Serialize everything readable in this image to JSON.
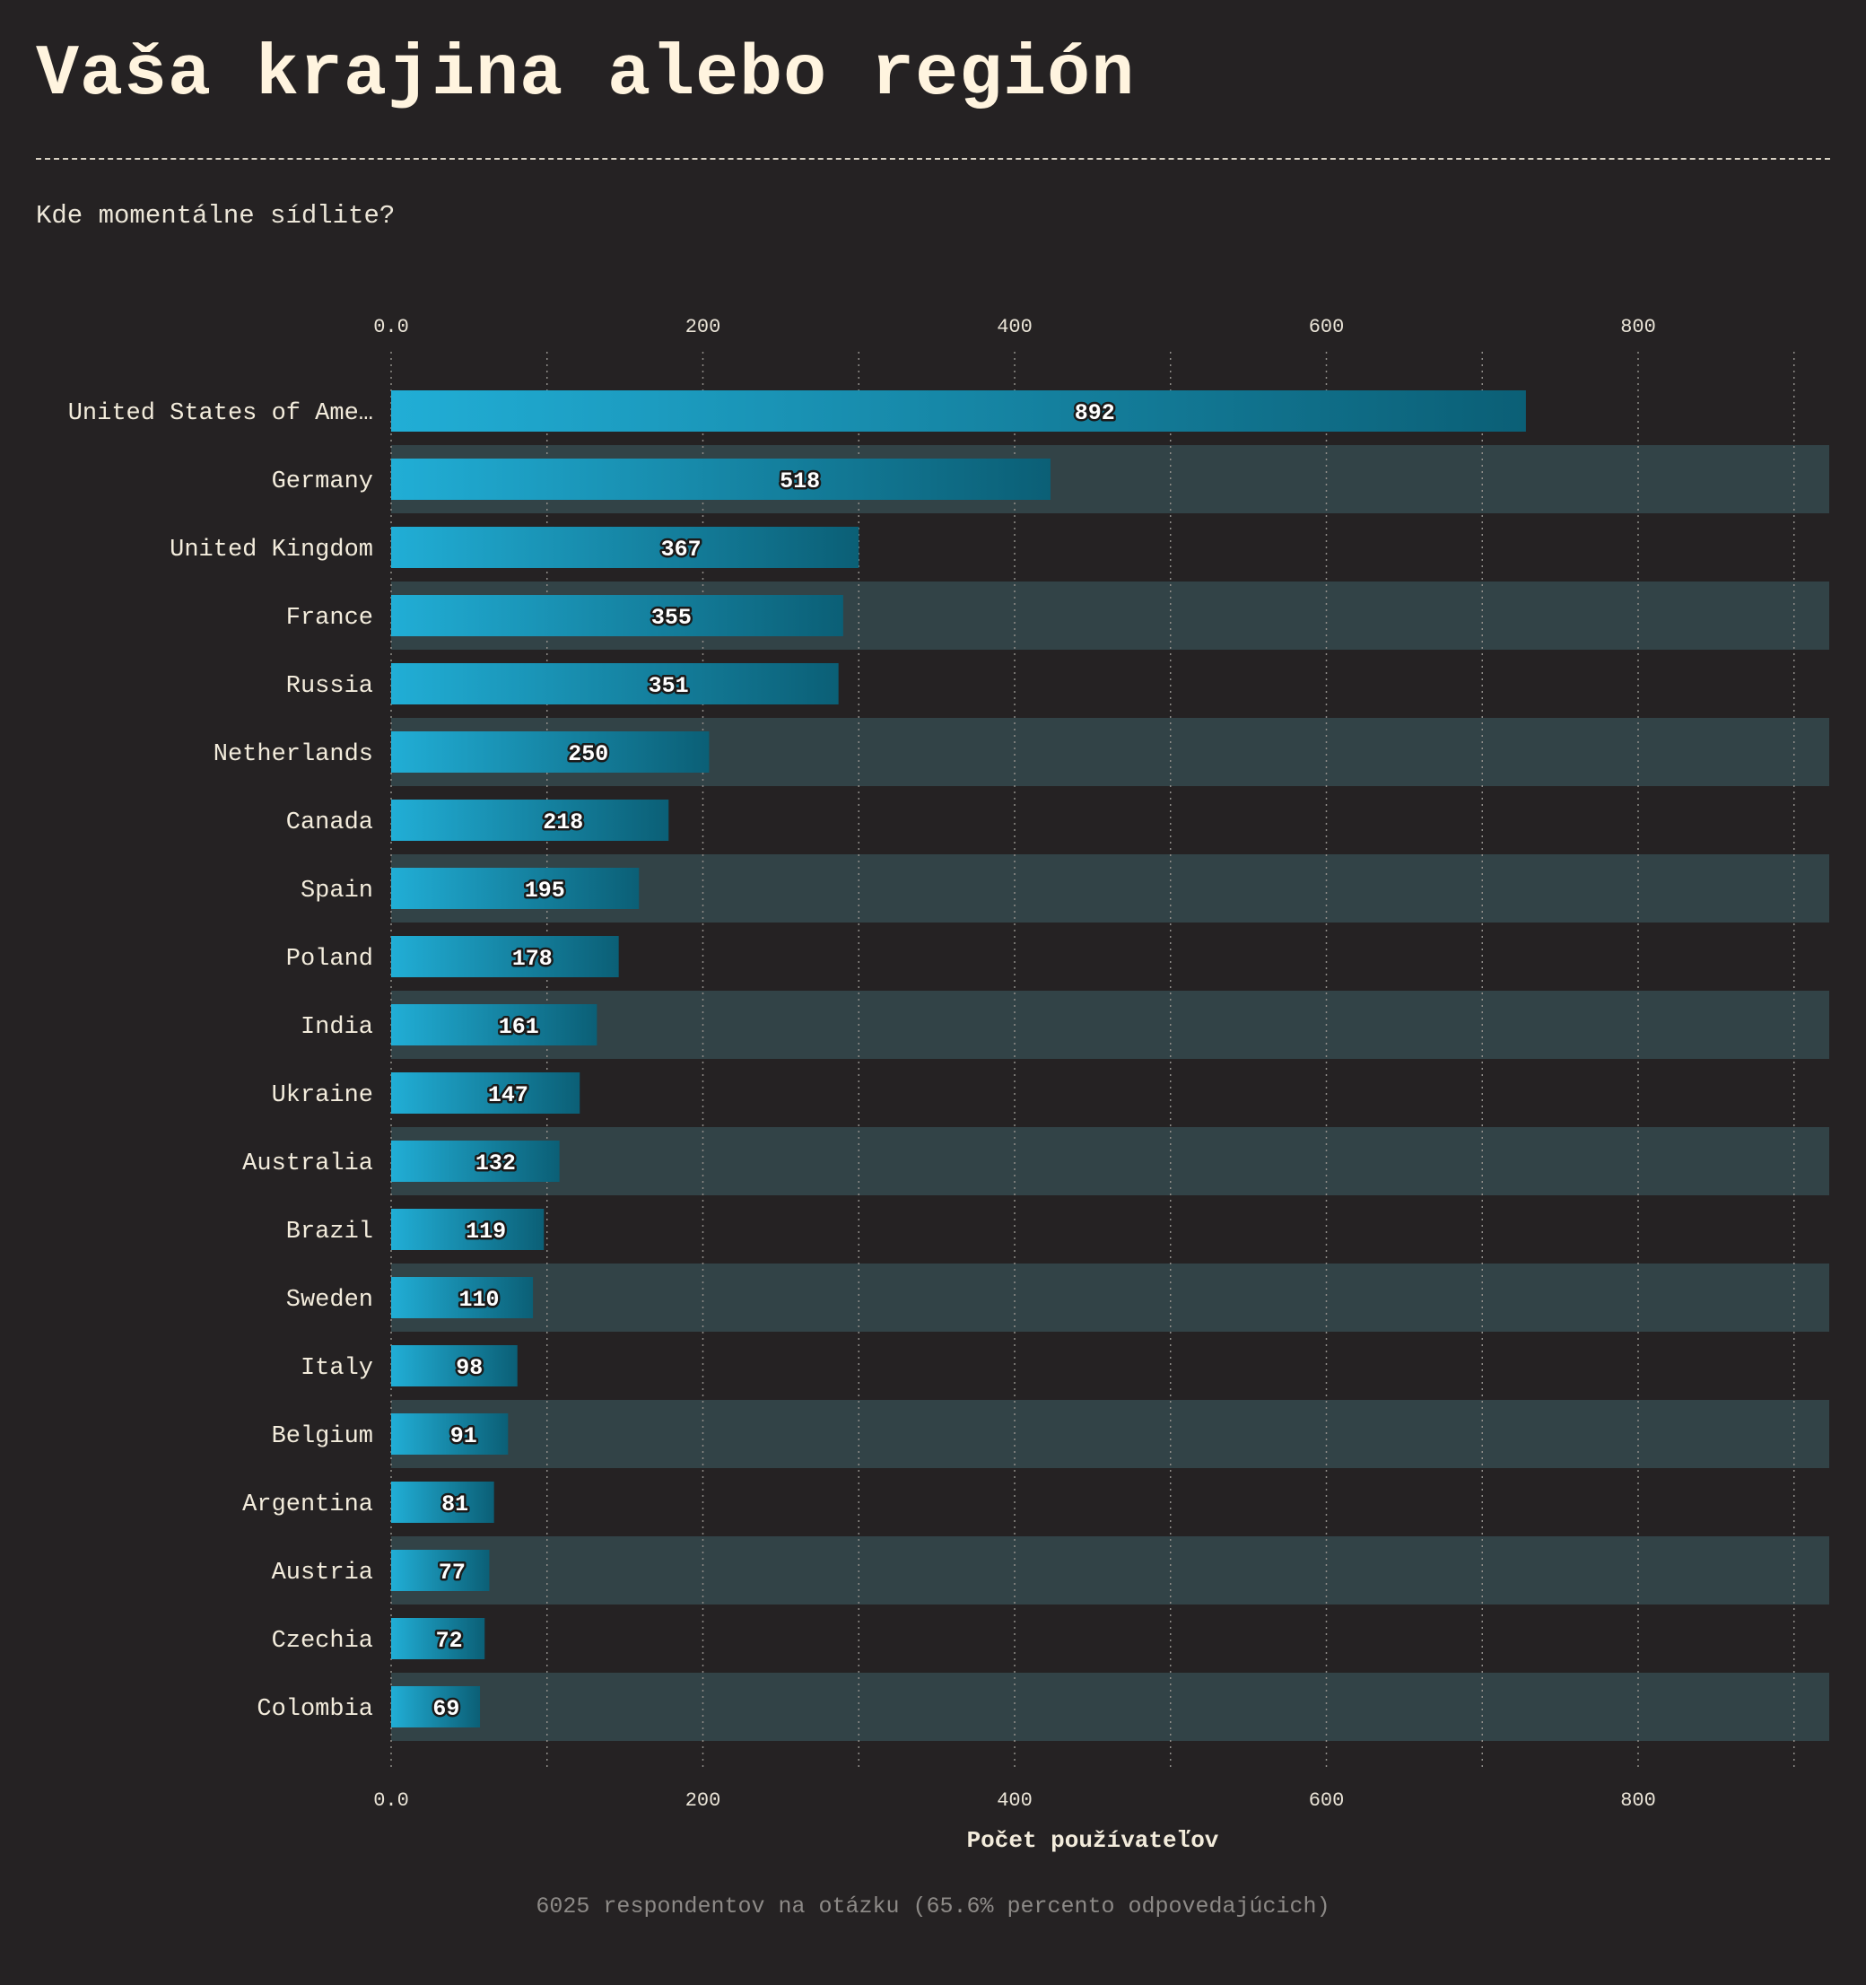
{
  "header": {
    "title": "Vaša krajina alebo región",
    "subtitle": "Kde momentálne sídlite?"
  },
  "footer": {
    "note": "6025 respondentov na otázku (65.6% percento odpovedajúcich)"
  },
  "colors": {
    "background": "#252223",
    "stripe": "#324347",
    "bar_start": "#21aed6",
    "bar_end": "#0b5f76",
    "text": "#f3ecdc"
  },
  "chart_data": {
    "type": "bar",
    "orientation": "horizontal",
    "xlabel": "Počet používateľov",
    "ylabel": "",
    "xlim": [
      0,
      923
    ],
    "xticks": [
      0,
      200,
      400,
      600,
      800
    ],
    "xtick_labels": [
      "0.0",
      "200",
      "400",
      "600",
      "800"
    ],
    "grid": "vertical dotted",
    "categories": [
      "United States of Ame…",
      "Germany",
      "United Kingdom",
      "France",
      "Russia",
      "Netherlands",
      "Canada",
      "Spain",
      "Poland",
      "India",
      "Ukraine",
      "Australia",
      "Brazil",
      "Sweden",
      "Italy",
      "Belgium",
      "Argentina",
      "Austria",
      "Czechia",
      "Colombia"
    ],
    "values": [
      892,
      518,
      367,
      355,
      351,
      250,
      218,
      195,
      178,
      161,
      147,
      132,
      119,
      110,
      98,
      91,
      81,
      77,
      72,
      69
    ],
    "bar_lengths": [
      728,
      423,
      300,
      290,
      287,
      204,
      178,
      159,
      146,
      132,
      121,
      108,
      98,
      91,
      81,
      75,
      66,
      63,
      60,
      57
    ]
  }
}
